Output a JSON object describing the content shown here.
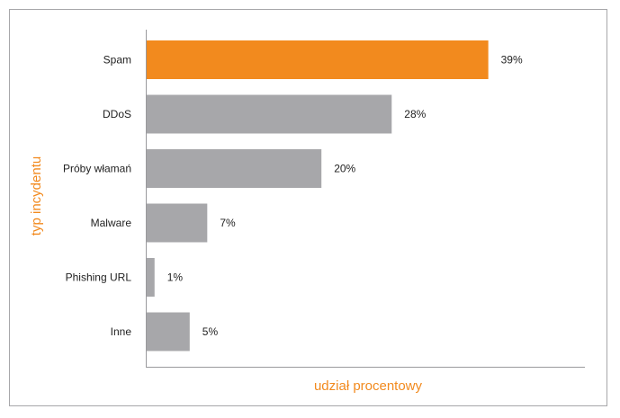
{
  "chart_data": {
    "type": "bar",
    "orientation": "horizontal",
    "categories": [
      "Spam",
      "DDoS",
      "Próby włamań",
      "Malware",
      "Phishing URL",
      "Inne"
    ],
    "values": [
      39,
      28,
      20,
      7,
      1,
      5
    ],
    "value_labels": [
      "39%",
      "28%",
      "20%",
      "7%",
      "1%",
      "5%"
    ],
    "highlight_index": 0,
    "xlabel": "udział procentowy",
    "ylabel": "typ incydentu",
    "xlim": [
      0,
      50
    ],
    "grid": false,
    "colors": {
      "highlight": "#f28a1e",
      "bar": "#a7a7aa",
      "axis_title": "#f28a1e",
      "axis_line": "#9a9a9d"
    }
  }
}
